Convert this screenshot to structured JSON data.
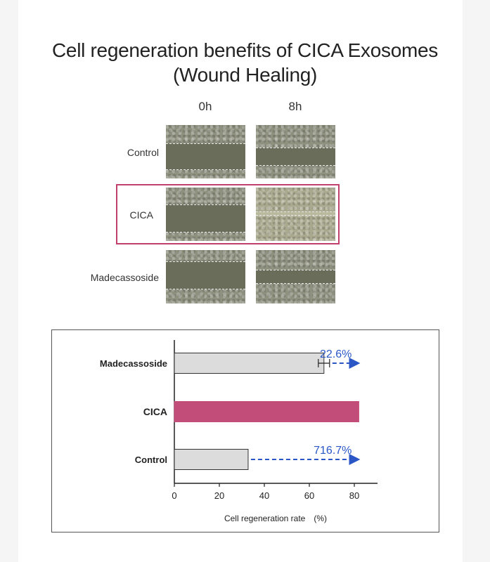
{
  "title_line1": "Cell regeneration benefits of CICA Exosomes",
  "title_line2": "(Wound Healing)",
  "time_points": [
    "0h",
    "8h"
  ],
  "image_rows": [
    {
      "label": "Control"
    },
    {
      "label": "CICA"
    },
    {
      "label": "Madecassoside"
    }
  ],
  "colors": {
    "cica_bar": "#c24d78",
    "other_bar": "#dcdcdc",
    "arrow": "#2a56c6",
    "highlight": "#c2406e"
  },
  "chart_data": {
    "type": "bar",
    "orientation": "horizontal",
    "categories": [
      "Madecassoside",
      "CICA",
      "Control"
    ],
    "values": [
      66.5,
      82,
      32.8
    ],
    "error_bars": [
      2.5,
      null,
      null
    ],
    "annotations": [
      {
        "category": "Madecassoside",
        "text": "22.6%"
      },
      {
        "category": "Control",
        "text": "716.7%"
      }
    ],
    "xlabel": "Cell regeneration rate　(%)",
    "ylabel": "",
    "xlim": [
      0,
      90
    ],
    "xticks": [
      0,
      20,
      40,
      60,
      80
    ],
    "grid": false
  }
}
